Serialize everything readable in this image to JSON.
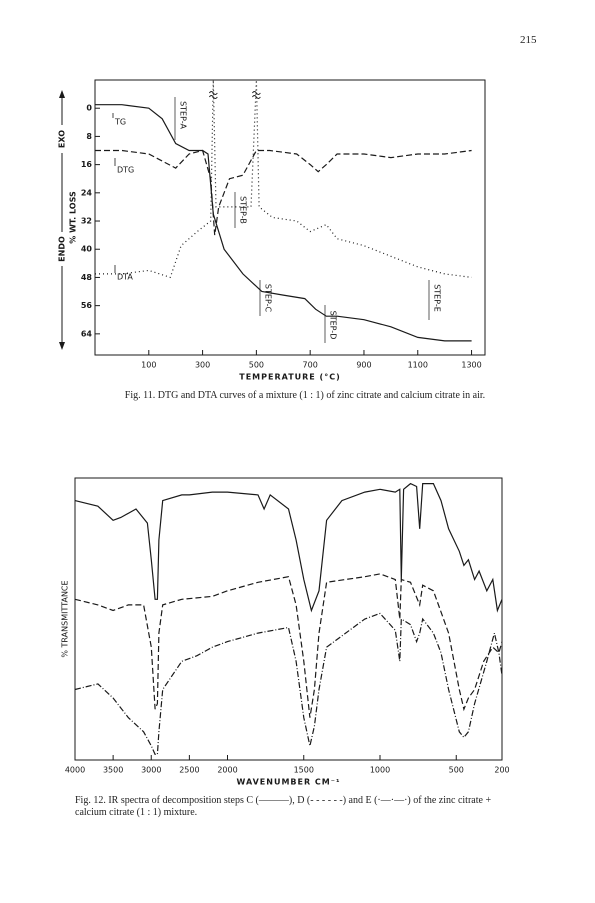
{
  "page_number": "215",
  "chart_data": [
    {
      "type": "line",
      "ylabel": "% WT. LOSS",
      "xlabel": "TEMPERATURE (°C)",
      "exo_label": "EXO",
      "endo_label": "ENDO",
      "curve_labels": [
        "TG",
        "DTG",
        "DTA"
      ],
      "annotations": [
        "STEP-A",
        "STEP-B",
        "STEP-C",
        "STEP-D",
        "STEP-E"
      ],
      "caption": "Fig. 11. DTG and DTA curves of a mixture (1 : 1) of zinc citrate and calcium citrate in air.",
      "xlim": [
        -100,
        1350
      ],
      "ylim": [
        -8,
        70
      ],
      "y_inverted": true,
      "xticks": [
        100,
        300,
        500,
        700,
        900,
        1100,
        1300
      ],
      "yticks": [
        0,
        8,
        16,
        24,
        32,
        40,
        48,
        56,
        64
      ],
      "series": [
        {
          "color": "#1a1a1a",
          "dash": "solid",
          "x": [
            -100,
            0,
            100,
            150,
            200,
            250,
            300,
            320,
            340,
            380,
            450,
            520,
            600,
            680,
            720,
            760,
            800,
            900,
            1000,
            1100,
            1200,
            1300
          ],
          "values": [
            -1,
            -1,
            0,
            3,
            10,
            12,
            12,
            13,
            30,
            40,
            47,
            52,
            53,
            54,
            57,
            59,
            59,
            60,
            62,
            65,
            66,
            66
          ]
        },
        {
          "color": "#1a1a1a",
          "dash": "dashed",
          "x": [
            -100,
            0,
            100,
            200,
            250,
            300,
            330,
            345,
            360,
            400,
            450,
            500,
            550,
            650,
            700,
            730,
            760,
            800,
            900,
            1000,
            1100,
            1200,
            1300
          ],
          "values": [
            12,
            12,
            13,
            17,
            13,
            12,
            20,
            36,
            28,
            20,
            19,
            12,
            12,
            13,
            16,
            18,
            16,
            13,
            13,
            14,
            13,
            13,
            12
          ]
        },
        {
          "color": "#1a1a1a",
          "dash": "dotted",
          "x": [
            -100,
            0,
            100,
            180,
            220,
            280,
            330,
            340,
            350,
            480,
            500,
            510,
            560,
            650,
            700,
            760,
            800,
            900,
            1000,
            1100,
            1200,
            1300
          ],
          "values": [
            47,
            47,
            46,
            48,
            39,
            35,
            32,
            -8,
            28,
            28,
            -8,
            28,
            31,
            32,
            35,
            33,
            37,
            39,
            42,
            45,
            47,
            48
          ]
        }
      ]
    },
    {
      "type": "line",
      "ylabel": "% TRANSMITTANCE",
      "xlabel": "WAVENUMBER CM⁻¹",
      "caption": "Fig. 12. IR spectra of decomposition steps C (———), D (- - - - - -) and E (·—·—·) of the zinc citrate + calcium citrate (1 : 1) mixture.",
      "xlim": [
        4000,
        200
      ],
      "x_scale_change_at": 2000,
      "x_scale_factor": 2,
      "ylim": [
        0,
        100
      ],
      "xticks": [
        4000,
        3500,
        3000,
        2500,
        2000,
        1500,
        1000,
        500,
        200
      ],
      "series": [
        {
          "color": "#1a1a1a",
          "dash": "solid",
          "x": [
            4000,
            3700,
            3500,
            3400,
            3200,
            3050,
            3000,
            2950,
            2920,
            2900,
            2850,
            2600,
            2500,
            2200,
            2000,
            1800,
            1760,
            1720,
            1600,
            1550,
            1500,
            1450,
            1400,
            1350,
            1250,
            1100,
            1000,
            900,
            870,
            860,
            845,
            800,
            760,
            740,
            720,
            650,
            600,
            550,
            480,
            450,
            420,
            380,
            350,
            300,
            260,
            230,
            200
          ],
          "values": [
            92,
            90,
            85,
            86,
            89,
            84,
            71,
            57,
            57,
            78,
            92,
            94,
            94,
            95,
            95,
            94,
            89,
            94,
            89,
            78,
            64,
            53,
            60,
            85,
            92,
            95,
            96,
            95,
            96,
            64,
            96,
            98,
            97,
            82,
            98,
            98,
            92,
            82,
            74,
            69,
            71,
            64,
            67,
            60,
            64,
            53,
            57
          ]
        },
        {
          "color": "#1a1a1a",
          "dash": "dashed",
          "x": [
            4000,
            3700,
            3500,
            3300,
            3100,
            3000,
            2950,
            2920,
            2900,
            2850,
            2600,
            2200,
            2000,
            1800,
            1600,
            1550,
            1500,
            1460,
            1430,
            1400,
            1350,
            1100,
            1000,
            900,
            870,
            860,
            800,
            740,
            720,
            650,
            550,
            480,
            450,
            420,
            380,
            320,
            260,
            220,
            200
          ],
          "values": [
            57,
            55,
            53,
            55,
            55,
            40,
            18,
            20,
            45,
            55,
            57,
            58,
            60,
            63,
            65,
            55,
            35,
            15,
            25,
            45,
            63,
            65,
            66,
            64,
            50,
            64,
            63,
            55,
            62,
            60,
            45,
            25,
            18,
            22,
            25,
            35,
            40,
            38,
            42
          ]
        },
        {
          "color": "#1a1a1a",
          "dash": "dash-dot",
          "x": [
            4000,
            3700,
            3500,
            3300,
            3100,
            3000,
            2950,
            2920,
            2900,
            2850,
            2600,
            2400,
            2200,
            2000,
            1800,
            1600,
            1550,
            1500,
            1460,
            1430,
            1400,
            1350,
            1200,
            1100,
            1000,
            900,
            870,
            860,
            800,
            760,
            740,
            720,
            650,
            600,
            550,
            480,
            450,
            420,
            380,
            300,
            250,
            220,
            200
          ],
          "values": [
            25,
            27,
            22,
            15,
            10,
            5,
            2,
            2,
            10,
            25,
            35,
            37,
            40,
            42,
            45,
            47,
            35,
            15,
            5,
            12,
            25,
            40,
            46,
            50,
            52,
            46,
            35,
            50,
            48,
            42,
            45,
            50,
            45,
            38,
            25,
            10,
            8,
            10,
            20,
            35,
            45,
            38,
            30
          ]
        }
      ]
    }
  ]
}
